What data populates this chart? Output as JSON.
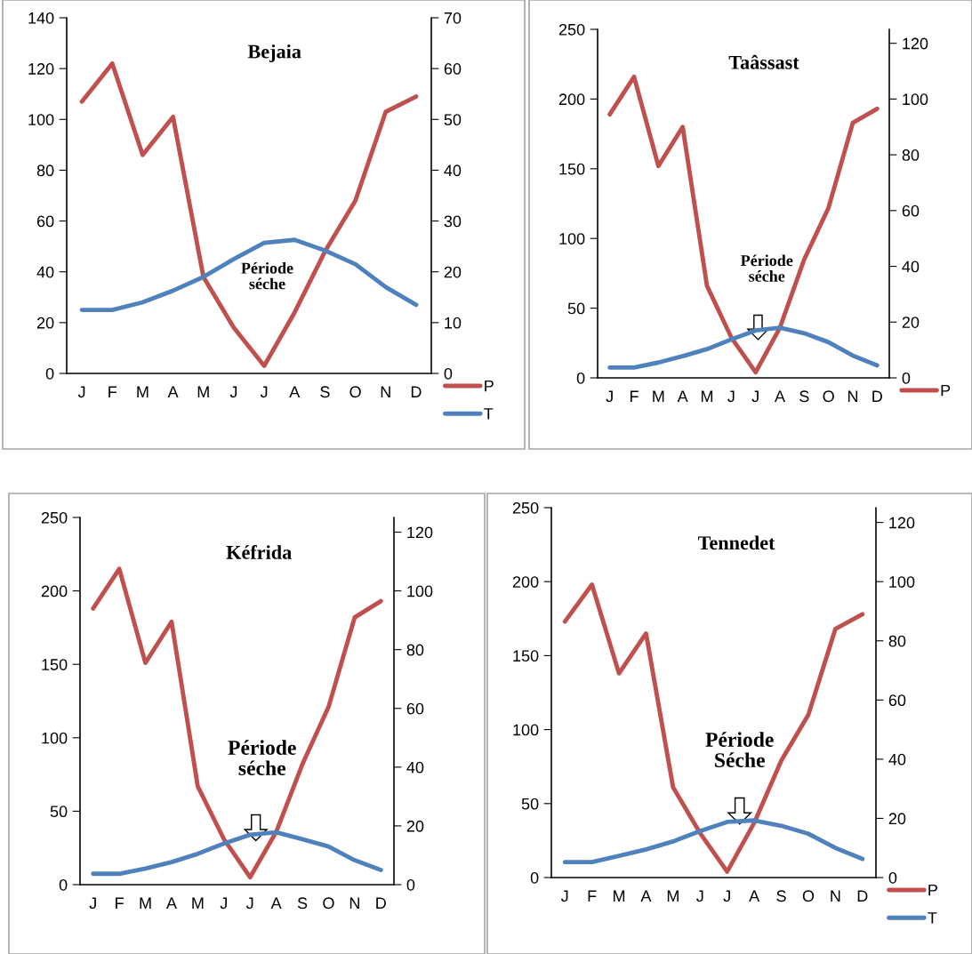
{
  "chart_data": [
    {
      "type": "line",
      "title": "Bejaia",
      "categories": [
        "J",
        "F",
        "M",
        "A",
        "M",
        "J",
        "J",
        "A",
        "S",
        "O",
        "N",
        "D"
      ],
      "series": [
        {
          "name": "P",
          "color": "#c0504d",
          "values": [
            107,
            122,
            86,
            101,
            38,
            18,
            3,
            24,
            48,
            68,
            103,
            109
          ]
        },
        {
          "name": "T",
          "color": "#4f81bd",
          "axis": "y2",
          "values": [
            12.5,
            12.5,
            14,
            16.3,
            19,
            22.5,
            25.7,
            26.3,
            24.2,
            21.5,
            17,
            13.5
          ]
        }
      ],
      "ylim": [
        0,
        140
      ],
      "yticks": [
        0,
        20,
        40,
        60,
        80,
        100,
        120,
        140
      ],
      "y2lim": [
        0,
        70
      ],
      "y2ticks": [
        0,
        10,
        20,
        30,
        40,
        50,
        60,
        70
      ],
      "annotations": [
        "Période\nséche"
      ],
      "legend": "bottom right",
      "grid": false
    },
    {
      "type": "line",
      "title": "Taâssast",
      "categories": [
        "J",
        "F",
        "M",
        "A",
        "M",
        "J",
        "J",
        "A",
        "S",
        "O",
        "N",
        "D"
      ],
      "series": [
        {
          "name": "P",
          "color": "#c0504d",
          "values": [
            189,
            216,
            152,
            180,
            66,
            29,
            4,
            36,
            85,
            122,
            183,
            193
          ]
        },
        {
          "color": "#4f81bd",
          "axis": "y2",
          "values": [
            3.7,
            3.7,
            5.5,
            7.8,
            10.3,
            13.8,
            17,
            18,
            16,
            12.8,
            8,
            4.5
          ]
        }
      ],
      "ylim": [
        0,
        250
      ],
      "yticks": [
        0,
        50,
        100,
        150,
        200,
        250
      ],
      "y2lim": [
        0,
        125
      ],
      "y2ticks": [
        0,
        20,
        40,
        60,
        80,
        100,
        120
      ],
      "annotations": [
        "Période\nséche"
      ],
      "legend": "bottom right",
      "grid": false
    },
    {
      "type": "line",
      "title": "Kéfrida",
      "categories": [
        "J",
        "F",
        "M",
        "A",
        "M",
        "J",
        "J",
        "A",
        "S",
        "O",
        "N",
        "D"
      ],
      "series": [
        {
          "color": "#c0504d",
          "values": [
            188,
            215,
            151,
            179,
            67,
            31,
            5,
            36,
            82,
            121,
            182,
            193
          ]
        },
        {
          "color": "#4f81bd",
          "axis": "y2",
          "values": [
            3.7,
            3.7,
            5.5,
            7.7,
            10.5,
            14,
            17,
            17.8,
            15.5,
            13,
            8.3,
            5
          ]
        }
      ],
      "ylim": [
        0,
        250
      ],
      "yticks": [
        0,
        50,
        100,
        150,
        200,
        250
      ],
      "y2lim": [
        0,
        125
      ],
      "y2ticks": [
        0,
        20,
        40,
        60,
        80,
        100,
        120
      ],
      "annotations": [
        "Période\nséche"
      ],
      "grid": false
    },
    {
      "type": "line",
      "title": "Tennedet",
      "categories": [
        "J",
        "F",
        "M",
        "A",
        "M",
        "J",
        "J",
        "A",
        "S",
        "O",
        "N",
        "D"
      ],
      "series": [
        {
          "name": "P",
          "color": "#c0504d",
          "values": [
            173,
            198,
            138,
            165,
            61,
            30,
            4,
            37,
            79,
            110,
            168,
            178
          ]
        },
        {
          "name": "T",
          "color": "#4f81bd",
          "axis": "y2",
          "values": [
            5.2,
            5.2,
            7.3,
            9.5,
            12.2,
            15.7,
            18.8,
            19.3,
            17.5,
            14.8,
            10,
            6.3
          ]
        }
      ],
      "ylim": [
        0,
        250
      ],
      "yticks": [
        0,
        50,
        100,
        150,
        200,
        250
      ],
      "y2lim": [
        0,
        125
      ],
      "y2ticks": [
        0,
        20,
        40,
        60,
        80,
        100,
        120
      ],
      "annotations": [
        "Période\nSéche"
      ],
      "legend": "bottom right",
      "grid": false
    }
  ]
}
